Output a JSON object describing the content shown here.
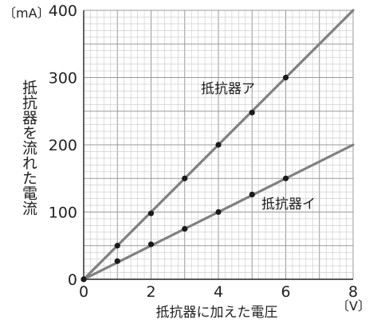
{
  "chart_data": {
    "type": "line",
    "x_unit": "〔V〕",
    "y_unit": "〔mA〕",
    "xlabel": "抵抗器に加えた電圧",
    "ylabel": "抵抗器を流れた電流",
    "xlim": [
      0,
      8
    ],
    "ylim": [
      0,
      400
    ],
    "x_ticks": [
      "0",
      "2",
      "4",
      "6",
      "8"
    ],
    "y_ticks": [
      "0",
      "100",
      "200",
      "300",
      "400"
    ],
    "grid": true,
    "series": [
      {
        "name": "抵抗器ア",
        "line": [
          [
            0,
            0
          ],
          [
            8,
            400
          ]
        ],
        "x": [
          0,
          1,
          2,
          3,
          4,
          5,
          6
        ],
        "y": [
          0,
          50,
          98,
          150,
          200,
          248,
          300
        ],
        "color": "#808080"
      },
      {
        "name": "抵抗器イ",
        "line": [
          [
            0,
            0
          ],
          [
            8,
            200
          ]
        ],
        "x": [
          0,
          1,
          2,
          3,
          4,
          5,
          6
        ],
        "y": [
          0,
          27,
          52,
          75,
          100,
          126,
          150
        ],
        "color": "#808080"
      }
    ]
  }
}
